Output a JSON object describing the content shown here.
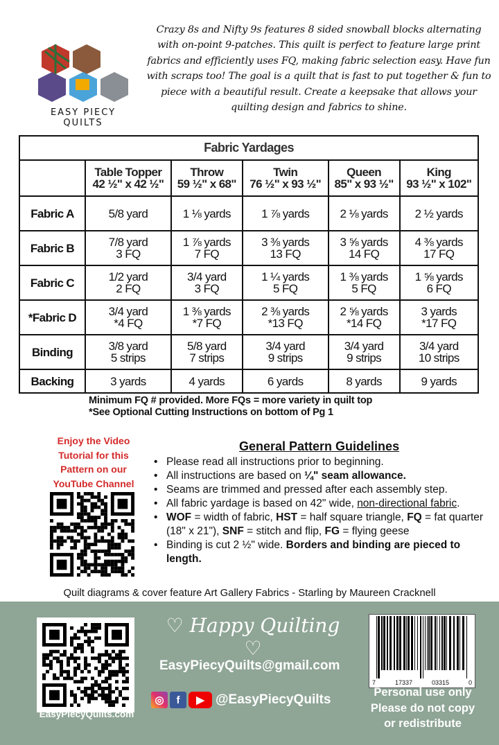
{
  "intro": "Crazy 8s and Nifty 9s features 8 sided snowball blocks alternating with on-point 9-patches. This quilt is perfect to feature large print fabrics and efficiently uses FQ, making fabric selection easy. Have fun with scraps too! The goal is a quilt that is fast to put together & fun to piece with a beautiful result. Create a keepsake that allows your quilting design and fabrics to shine.",
  "logo": {
    "text": "EASY PIECY QUILTS"
  },
  "table": {
    "title": "Fabric Yardages",
    "columns": [
      {
        "name": "Table Topper",
        "size": "42 ½\" x 42 ½\""
      },
      {
        "name": "Throw",
        "size": "59 ½\" x 68\""
      },
      {
        "name": "Twin",
        "size": "76 ½\" x 93 ½\""
      },
      {
        "name": "Queen",
        "size": "85\" x 93 ½\""
      },
      {
        "name": "King",
        "size": "93 ½\" x 102\""
      }
    ],
    "rows": [
      {
        "label": "Fabric A",
        "cells": [
          [
            "5/8 yard"
          ],
          [
            "1 ⅛ yards"
          ],
          [
            "1 ⅞ yards"
          ],
          [
            "2 ⅛ yards"
          ],
          [
            "2 ½ yards"
          ]
        ]
      },
      {
        "label": "Fabric B",
        "cells": [
          [
            "7/8 yard",
            "3 FQ"
          ],
          [
            "1 ⅞ yards",
            "7 FQ"
          ],
          [
            "3 ⅜ yards",
            "13 FQ"
          ],
          [
            "3 ⅝ yards",
            "14 FQ"
          ],
          [
            "4 ⅜ yards",
            "17 FQ"
          ]
        ]
      },
      {
        "label": "Fabric C",
        "cells": [
          [
            "1/2 yard",
            "2 FQ"
          ],
          [
            "3/4 yard",
            "3 FQ"
          ],
          [
            "1 ¼ yards",
            "5 FQ"
          ],
          [
            "1 ⅜ yards",
            "5 FQ"
          ],
          [
            "1 ⅝ yards",
            "6 FQ"
          ]
        ]
      },
      {
        "label": "*Fabric D",
        "cells": [
          [
            "3/4 yard",
            "*4 FQ"
          ],
          [
            "1 ⅜ yards",
            "*7 FQ"
          ],
          [
            "2 ⅜ yards",
            "*13 FQ"
          ],
          [
            "2 ⅝ yards",
            "*14 FQ"
          ],
          [
            "3 yards",
            "*17 FQ"
          ]
        ]
      },
      {
        "label": "Binding",
        "cells": [
          [
            "3/8 yard",
            "5 strips"
          ],
          [
            "5/8 yard",
            "7 strips"
          ],
          [
            "3/4 yard",
            "9 strips"
          ],
          [
            "3/4 yard",
            "9 strips"
          ],
          [
            "3/4 yard",
            "10 strips"
          ]
        ]
      },
      {
        "label": "Backing",
        "cells": [
          [
            "3 yards"
          ],
          [
            "4 yards"
          ],
          [
            "6 yards"
          ],
          [
            "8 yards"
          ],
          [
            "9 yards"
          ]
        ]
      }
    ]
  },
  "notes": [
    "Minimum FQ # provided. More FQs = more variety in quilt top",
    "*See Optional Cutting Instructions on bottom of Pg 1"
  ],
  "video": {
    "text": "Enjoy the Video Tutorial for this Pattern on our YouTube Channel",
    "color": "#d42a2a"
  },
  "guidelines": {
    "title": "General Pattern Guidelines",
    "items": [
      [
        {
          "t": "Please read all instructions prior to beginning."
        }
      ],
      [
        {
          "t": "All instructions are based on "
        },
        {
          "t": "¼\" seam allowance.",
          "b": true
        }
      ],
      [
        {
          "t": "Seams are trimmed and pressed after each assembly step."
        }
      ],
      [
        {
          "t": "All fabric yardage is based on 42\" wide, "
        },
        {
          "t": "non-directional fabric",
          "u": true
        },
        {
          "t": "."
        }
      ],
      [
        {
          "t": "WOF",
          "b": true
        },
        {
          "t": " = width of fabric, "
        },
        {
          "t": "HST",
          "b": true
        },
        {
          "t": " = half square triangle, "
        },
        {
          "t": "FQ",
          "b": true
        },
        {
          "t": " = fat quarter (18\" x 21\"), "
        },
        {
          "t": "SNF",
          "b": true
        },
        {
          "t": " = stitch and flip, "
        },
        {
          "t": "FG",
          "b": true
        },
        {
          "t": " = flying geese"
        }
      ],
      [
        {
          "t": "Binding is cut 2 ½\" wide. "
        },
        {
          "t": "Borders and binding are pieced to length.",
          "b": true
        }
      ]
    ]
  },
  "credit": "Quilt diagrams & cover feature Art Gallery Fabrics - Starling by Maureen Cracknell",
  "footer": {
    "bg": "#8fa596",
    "site": "EasyPiecyQuilts.com",
    "happy": "Happy Quilting",
    "email": "EasyPiecyQuilts@gmail.com",
    "social_icons": [
      "instagram-icon",
      "facebook-icon",
      "youtube-icon"
    ],
    "handle": "@EasyPiecyQuilts",
    "barcode_digits": [
      "7",
      "17337",
      "03315",
      "0"
    ],
    "personal": [
      "Personal use only",
      "Please do not copy",
      "or redistribute"
    ]
  }
}
